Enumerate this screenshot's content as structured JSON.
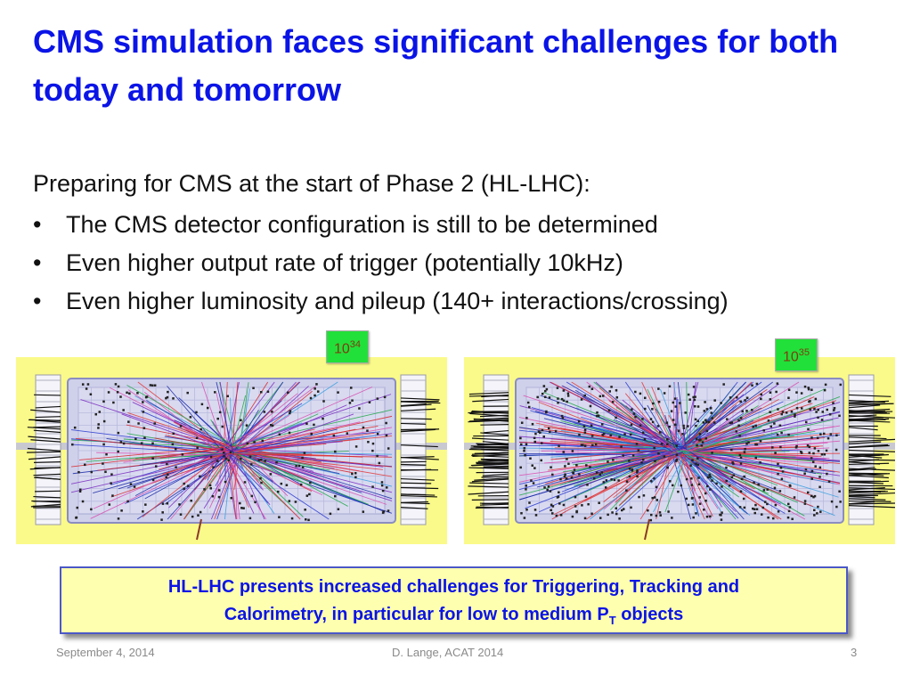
{
  "slide": {
    "title": "CMS simulation faces significant challenges for both today and tomorrow",
    "intro": "Preparing for CMS at the start of Phase 2 (HL-LHC):",
    "bullets": [
      "The CMS detector configuration is still to be determined",
      "Even higher output rate of trigger (potentially 10kHz)",
      "Even higher luminosity and pileup  (140+ interactions/crossing)"
    ],
    "bullet_symbol": "•",
    "panels": [
      {
        "badge_base": "10",
        "badge_exp": "34"
      },
      {
        "badge_base": "10",
        "badge_exp": "35"
      }
    ],
    "callout": {
      "line1": "HL-LHC presents increased challenges for Triggering, Tracking and",
      "line2_prefix": "Calorimetry,  in particular for low to medium P",
      "line2_sub": "T",
      "line2_suffix": " objects"
    },
    "footer": {
      "date": "September 4, 2014",
      "author": "D. Lange, ACAT 2014",
      "page": "3"
    }
  },
  "colors": {
    "title": "#0a14e6",
    "panel_bg": "#fafa8a",
    "badge_bg": "#22e03a",
    "callout_bg": "#ffffb0",
    "callout_border": "#4b58c8"
  },
  "images": [
    {
      "name": "event-display-low-pileup",
      "density": 0.35
    },
    {
      "name": "event-display-high-pileup",
      "density": 1.0
    }
  ]
}
